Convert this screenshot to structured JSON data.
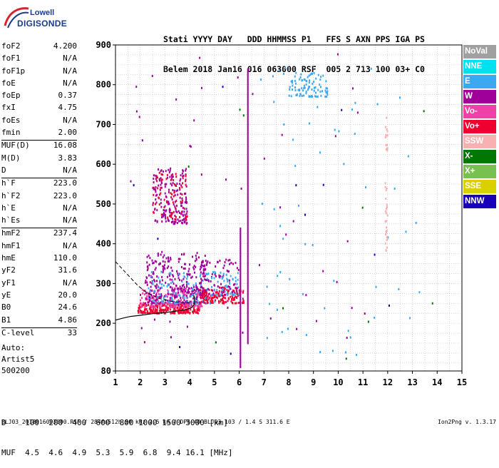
{
  "logo": {
    "line1": "Lowell",
    "line2": "DIGISONDE"
  },
  "header": {
    "line1": "Stati YYYY DAY   DDD HHMMSS P1   FFS S AXN PPS IGA PS",
    "line2": "Belem 2018 Jan16 016 063000 RSF  005 2 713 100 03+ C0"
  },
  "params": [
    {
      "k": "foF2",
      "v": "4.200"
    },
    {
      "k": "foF1",
      "v": "N/A"
    },
    {
      "k": "foF1p",
      "v": "N/A"
    },
    {
      "k": "foE",
      "v": "N/A"
    },
    {
      "k": "foEp",
      "v": "0.37"
    },
    {
      "k": "fxI",
      "v": "4.75"
    },
    {
      "k": "foEs",
      "v": "N/A"
    },
    {
      "k": "fmin",
      "v": "2.00"
    },
    {
      "k": "MUF(D)",
      "v": "16.08",
      "sep": true
    },
    {
      "k": "M(D)",
      "v": "3.83"
    },
    {
      "k": "D",
      "v": "N/A"
    },
    {
      "k": "h`F",
      "v": "223.0",
      "sep": true
    },
    {
      "k": "h`F2",
      "v": "223.0"
    },
    {
      "k": "h`E",
      "v": "N/A"
    },
    {
      "k": "h`Es",
      "v": "N/A"
    },
    {
      "k": "hmF2",
      "v": "237.4",
      "sep": true
    },
    {
      "k": "hmF1",
      "v": "N/A"
    },
    {
      "k": "hmE",
      "v": "110.0"
    },
    {
      "k": "yF2",
      "v": "31.6"
    },
    {
      "k": "yF1",
      "v": "N/A"
    },
    {
      "k": "yE",
      "v": "20.0"
    },
    {
      "k": "B0",
      "v": "24.6"
    },
    {
      "k": "B1",
      "v": "4.86"
    },
    {
      "k": "C-level",
      "v": "33",
      "sep": true
    }
  ],
  "extra": {
    "auto": "Auto:",
    "artist": "Artist5",
    "version": "500200"
  },
  "bottom": {
    "d_line": "D    100  200  400  600  800 1000 1500 3000 [km]",
    "muf_line": "MUF  4.5  4.6  4.9  5.3  5.9  6.8  9.4 16.1 [MHz]"
  },
  "footer": {
    "left": "BLJ03_2018016063000.RSF / 284fx512h 50 kHz 2.5 km / DPS-4D BLJ03 103 / 1.4 S 311.6 E",
    "right": "Ion2Png v. 1.3.17"
  },
  "legend": [
    {
      "label": "NoVal",
      "color": "#a0a0a0"
    },
    {
      "label": "NNE",
      "color": "#00e0f0"
    },
    {
      "label": "E",
      "color": "#3ca8f0"
    },
    {
      "label": "W",
      "color": "#a0009a"
    },
    {
      "label": "Vo-",
      "color": "#f040a8"
    },
    {
      "label": "Vo+",
      "color": "#f00030"
    },
    {
      "label": "SSW",
      "color": "#f8b0b0"
    },
    {
      "label": "X-",
      "color": "#007800"
    },
    {
      "label": "X+",
      "color": "#78c050"
    },
    {
      "label": "SSE",
      "color": "#d8d000"
    },
    {
      "label": "NNW",
      "color": "#1800b8"
    }
  ],
  "chart_data": {
    "type": "scatter",
    "title": "",
    "xlabel": "",
    "ylabel": "",
    "xlim": [
      1,
      15
    ],
    "ylim": [
      80,
      900
    ],
    "x_ticks": [
      1,
      2,
      3,
      4,
      5,
      6,
      7,
      8,
      9,
      10,
      11,
      12,
      13,
      14,
      15
    ],
    "y_ticks": [
      80,
      200,
      300,
      400,
      500,
      600,
      700,
      800,
      900
    ],
    "grid": true,
    "echo_clusters": [
      {
        "name": "F-trace O low",
        "color": "#f00030",
        "x": [
          1.9,
          4.4
        ],
        "y": [
          225,
          250
        ],
        "n": 260
      },
      {
        "name": "F-trace O mid",
        "color": "#f040a8",
        "x": [
          2.0,
          4.6
        ],
        "y": [
          240,
          290
        ],
        "n": 200
      },
      {
        "name": "F-trace W band",
        "color": "#a0009a",
        "x": [
          2.2,
          4.7
        ],
        "y": [
          250,
          380
        ],
        "n": 320
      },
      {
        "name": "F-trace E band",
        "color": "#3ca8f0",
        "x": [
          2.3,
          5.6
        ],
        "y": [
          250,
          330
        ],
        "n": 120
      },
      {
        "name": "Spread F Vo+",
        "color": "#f00030",
        "x": [
          4.4,
          6.2
        ],
        "y": [
          250,
          290
        ],
        "n": 140
      },
      {
        "name": "Spread F W",
        "color": "#a0009a",
        "x": [
          4.4,
          6.0
        ],
        "y": [
          270,
          360
        ],
        "n": 80
      },
      {
        "name": "Spread F E",
        "color": "#3ca8f0",
        "x": [
          4.8,
          6.0
        ],
        "y": [
          270,
          330
        ],
        "n": 40
      },
      {
        "name": "2nd hop W",
        "color": "#a0009a",
        "x": [
          2.5,
          3.9
        ],
        "y": [
          450,
          590
        ],
        "n": 180
      },
      {
        "name": "2nd hop Vo+",
        "color": "#f00030",
        "x": [
          2.5,
          3.9
        ],
        "y": [
          460,
          580
        ],
        "n": 70
      },
      {
        "name": "Upper E cluster",
        "color": "#3ca8f0",
        "x": [
          8.0,
          9.6
        ],
        "y": [
          770,
          830
        ],
        "n": 90
      },
      {
        "name": "Scattered W",
        "color": "#a0009a",
        "x": [
          1.6,
          11.3
        ],
        "y": [
          150,
          880
        ],
        "n": 50
      },
      {
        "name": "Scattered E",
        "color": "#3ca8f0",
        "x": [
          6.5,
          13.5
        ],
        "y": [
          120,
          880
        ],
        "n": 60
      },
      {
        "name": "SSW column",
        "color": "#f8b0b0",
        "x": [
          11.9,
          12.0
        ],
        "y": [
          380,
          720
        ],
        "n": 40
      },
      {
        "name": "NNW points",
        "color": "#1800b8",
        "x": [
          1.7,
          14.2
        ],
        "y": [
          100,
          880
        ],
        "n": 12
      },
      {
        "name": "X- points",
        "color": "#007800",
        "x": [
          1.8,
          14.3
        ],
        "y": [
          100,
          880
        ],
        "n": 10
      }
    ],
    "vertical_lines": [
      {
        "x": 6.05,
        "y": [
          90,
          440
        ],
        "color": "#a0009a"
      },
      {
        "x": 6.35,
        "y": [
          150,
          840
        ],
        "color": "#a0009a"
      }
    ],
    "profile_solid": [
      [
        1.0,
        208
      ],
      [
        1.3,
        213
      ],
      [
        1.6,
        217
      ],
      [
        2.0,
        220
      ],
      [
        2.5,
        224
      ],
      [
        3.0,
        227
      ],
      [
        3.5,
        231
      ],
      [
        3.9,
        235
      ],
      [
        4.1,
        240
      ],
      [
        4.2,
        250
      ],
      [
        4.2,
        262
      ],
      [
        4.15,
        270
      ]
    ],
    "profile_dashed": [
      [
        1.0,
        355
      ],
      [
        1.3,
        335
      ],
      [
        1.6,
        315
      ],
      [
        1.9,
        295
      ],
      [
        2.2,
        280
      ],
      [
        2.5,
        270
      ],
      [
        2.8,
        262
      ],
      [
        3.2,
        256
      ],
      [
        3.6,
        252
      ],
      [
        4.0,
        252
      ]
    ]
  }
}
